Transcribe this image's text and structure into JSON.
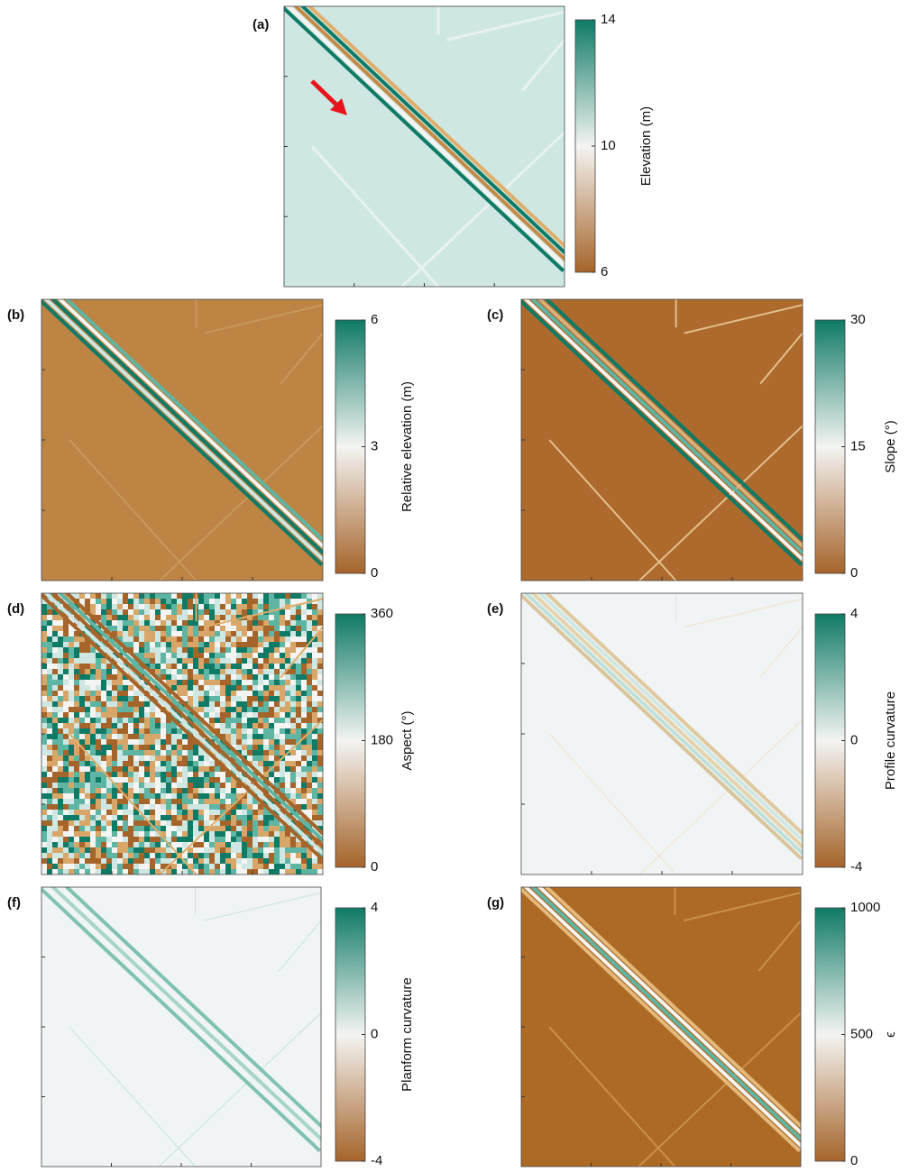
{
  "chart_data": [
    {
      "type": "image",
      "panel": "(a)",
      "colorbar_label": "Elevation (m)",
      "clim": [
        6,
        14
      ],
      "cticks": [
        6,
        10,
        14
      ],
      "colormap": [
        "#a5642a",
        "#f4f4f2",
        "#0f7a65"
      ]
    },
    {
      "type": "image",
      "panel": "(b)",
      "colorbar_label": "Relative elevation (m)",
      "clim": [
        0,
        6
      ],
      "cticks": [
        0,
        3,
        6
      ],
      "colormap": [
        "#a5642a",
        "#f4f4f2",
        "#0f7a65"
      ]
    },
    {
      "type": "image",
      "panel": "(c)",
      "colorbar_label": "Slope (°)",
      "clim": [
        0,
        30
      ],
      "cticks": [
        0,
        15,
        30
      ],
      "colormap": [
        "#a5642a",
        "#f4f4f2",
        "#0f7a65"
      ]
    },
    {
      "type": "image",
      "panel": "(d)",
      "colorbar_label": "Aspect (°)",
      "clim": [
        0,
        360
      ],
      "cticks": [
        0,
        180,
        360
      ],
      "colormap": [
        "#a5642a",
        "#f4f4f2",
        "#0f7a65"
      ]
    },
    {
      "type": "image",
      "panel": "(e)",
      "colorbar_label": "Profile curvature",
      "clim": [
        -4,
        4
      ],
      "cticks": [
        -4,
        0,
        4
      ],
      "colormap": [
        "#a5642a",
        "#f4f4f2",
        "#0f7a65"
      ]
    },
    {
      "type": "image",
      "panel": "(f)",
      "colorbar_label": "Planform curvature",
      "clim": [
        -4,
        4
      ],
      "cticks": [
        -4,
        0,
        4
      ],
      "colormap": [
        "#a5642a",
        "#f4f4f2",
        "#0f7a65"
      ]
    },
    {
      "type": "image",
      "panel": "(g)",
      "colorbar_label": "ϵ",
      "clim": [
        0,
        1000
      ],
      "cticks": [
        0,
        500,
        1000
      ],
      "colormap": [
        "#a5642a",
        "#f4f4f2",
        "#0f7a65"
      ]
    }
  ]
}
